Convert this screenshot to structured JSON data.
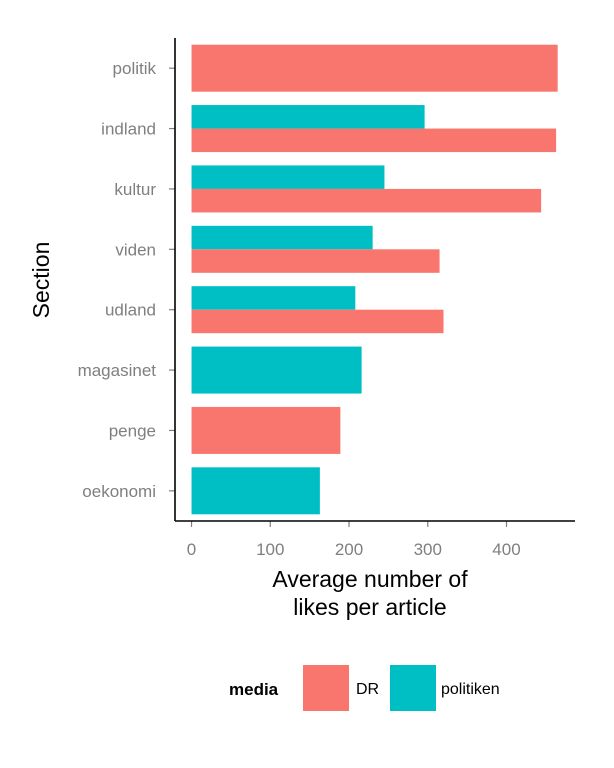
{
  "chart_data": {
    "type": "bar",
    "orientation": "horizontal",
    "categories": [
      "politik",
      "indland",
      "kultur",
      "viden",
      "udland",
      "magasinet",
      "penge",
      "oekonomi"
    ],
    "series": [
      {
        "name": "DR",
        "color": "#F8766D",
        "values": [
          465,
          463,
          444,
          315,
          320,
          null,
          189,
          null
        ]
      },
      {
        "name": "politiken",
        "color": "#00BFC4",
        "values": [
          null,
          296,
          245,
          230,
          208,
          216,
          null,
          163
        ]
      }
    ],
    "xlabel": "Average number of\nlikes per article",
    "ylabel": "Section",
    "x_ticks": [
      0,
      100,
      200,
      300,
      400
    ],
    "xlim": [
      -21,
      487
    ],
    "grid": false,
    "legend": {
      "title": "media",
      "position": "bottom"
    }
  }
}
